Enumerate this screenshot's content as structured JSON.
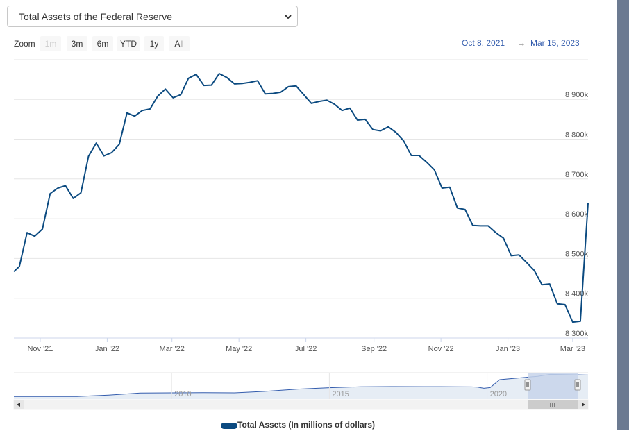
{
  "selector": {
    "value": "Total Assets of the Federal Reserve"
  },
  "zoom": {
    "label": "Zoom",
    "buttons": [
      {
        "label": "1m",
        "enabled": false
      },
      {
        "label": "3m",
        "enabled": true
      },
      {
        "label": "6m",
        "enabled": true
      },
      {
        "label": "YTD",
        "enabled": true
      },
      {
        "label": "1y",
        "enabled": true
      },
      {
        "label": "All",
        "enabled": true
      }
    ]
  },
  "range": {
    "from": "Oct 8, 2021",
    "separator": "→",
    "to": "Mar 15, 2023"
  },
  "colors": {
    "series": "#0b4a80",
    "grid": "#e6e6e6",
    "navigator_fill": "#e6edf5",
    "navigator_mask": "#c7d3ea",
    "right_panel": "#6c7a91"
  },
  "chart_data": {
    "type": "line",
    "title": "",
    "xlabel": "",
    "ylabel": "",
    "x_ticks": [
      "Nov '21",
      "Jan '22",
      "Mar '22",
      "May '22",
      "Jul '22",
      "Sep '22",
      "Nov '22",
      "Jan '23",
      "Mar '23"
    ],
    "y_ticks": [
      "8 300k",
      "8 400k",
      "8 500k",
      "8 600k",
      "8 700k",
      "8 800k",
      "8 900k"
    ],
    "ylim": [
      8300000,
      9000000
    ],
    "grid": true,
    "legend": "bottom-center",
    "series": [
      {
        "name": "Total Assets (In millions of dollars)",
        "x": [
          "2021-10-08",
          "2021-10-13",
          "2021-10-20",
          "2021-10-27",
          "2021-11-03",
          "2021-11-10",
          "2021-11-17",
          "2021-11-24",
          "2021-12-01",
          "2021-12-08",
          "2021-12-15",
          "2021-12-22",
          "2021-12-29",
          "2022-01-05",
          "2022-01-12",
          "2022-01-19",
          "2022-01-26",
          "2022-02-02",
          "2022-02-09",
          "2022-02-16",
          "2022-02-23",
          "2022-03-02",
          "2022-03-09",
          "2022-03-16",
          "2022-03-23",
          "2022-03-30",
          "2022-04-06",
          "2022-04-13",
          "2022-04-20",
          "2022-04-27",
          "2022-05-04",
          "2022-05-11",
          "2022-05-18",
          "2022-05-25",
          "2022-06-01",
          "2022-06-08",
          "2022-06-15",
          "2022-06-22",
          "2022-06-29",
          "2022-07-06",
          "2022-07-13",
          "2022-07-20",
          "2022-07-27",
          "2022-08-03",
          "2022-08-10",
          "2022-08-17",
          "2022-08-24",
          "2022-08-31",
          "2022-09-07",
          "2022-09-14",
          "2022-09-21",
          "2022-09-28",
          "2022-10-05",
          "2022-10-12",
          "2022-10-19",
          "2022-10-26",
          "2022-11-02",
          "2022-11-09",
          "2022-11-16",
          "2022-11-23",
          "2022-11-30",
          "2022-12-07",
          "2022-12-14",
          "2022-12-21",
          "2022-12-28",
          "2023-01-04",
          "2023-01-11",
          "2023-01-18",
          "2023-01-25",
          "2023-02-01",
          "2023-02-08",
          "2023-02-15",
          "2023-02-22",
          "2023-03-01",
          "2023-03-08",
          "2023-03-15"
        ],
        "values": [
          8467000,
          8480000,
          8565000,
          8556000,
          8574000,
          8663000,
          8677000,
          8683000,
          8651000,
          8665000,
          8757000,
          8790000,
          8758000,
          8766000,
          8787000,
          8866000,
          8858000,
          8872000,
          8876000,
          8908000,
          8926000,
          8904000,
          8912000,
          8953000,
          8963000,
          8935000,
          8936000,
          8965000,
          8955000,
          8939000,
          8940000,
          8943000,
          8947000,
          8914000,
          8915000,
          8918000,
          8932000,
          8934000,
          8912000,
          8890000,
          8895000,
          8898000,
          8888000,
          8872000,
          8878000,
          8848000,
          8850000,
          8824000,
          8821000,
          8831000,
          8817000,
          8796000,
          8759000,
          8759000,
          8742000,
          8723000,
          8677000,
          8679000,
          8627000,
          8623000,
          8583000,
          8582000,
          8582000,
          8565000,
          8551000,
          8507000,
          8509000,
          8490000,
          8470000,
          8434000,
          8436000,
          8386000,
          8384000,
          8340000,
          8342000,
          8639000
        ]
      }
    ]
  },
  "navigator": {
    "labels": [
      "2010",
      "2015",
      "2020"
    ],
    "series_values": [
      920000,
      930000,
      960000,
      1450000,
      2200000,
      2250000,
      2300000,
      2250000,
      2800000,
      3600000,
      4100000,
      4450000,
      4500000,
      4480000,
      4450000,
      4400000,
      4300000,
      4100000,
      3900000,
      4150000,
      7000000,
      7600000,
      8200000,
      8900000,
      8800000,
      8650000
    ],
    "series_x": [
      2005,
      2006,
      2007,
      2008,
      2009,
      2010,
      2011,
      2012,
      2013,
      2014,
      2015,
      2016,
      2017,
      2018,
      2019,
      2019.5,
      2019.7,
      2019.8,
      2019.9,
      2020.1,
      2020.4,
      2021,
      2021.6,
      2022,
      2022.5,
      2023.2
    ]
  }
}
